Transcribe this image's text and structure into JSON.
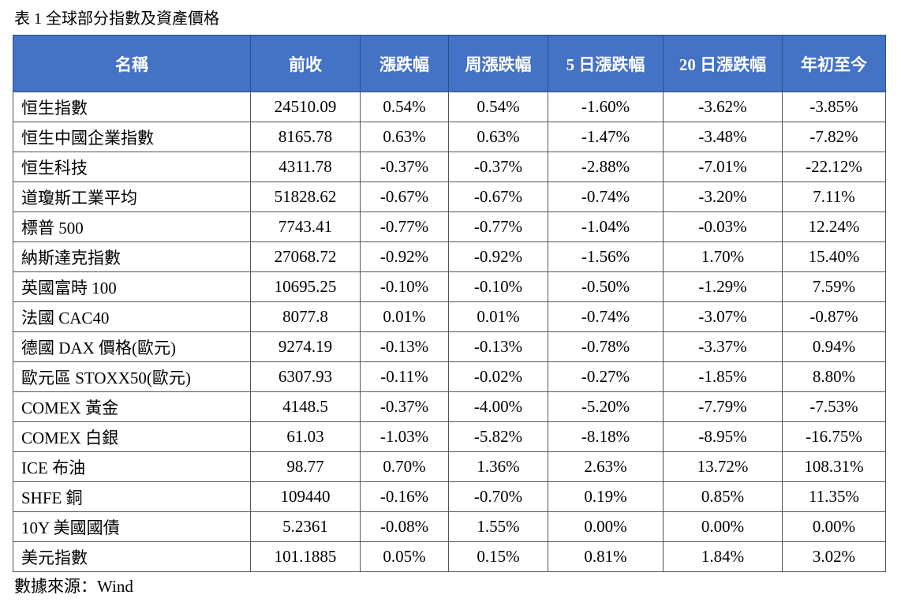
{
  "caption": "表 1 全球部分指數及資產價格",
  "source": "數據來源：Wind",
  "colors": {
    "header_bg": "#4472c4",
    "header_text": "#ffffff"
  },
  "table": {
    "headers": [
      "名稱",
      "前收",
      "漲跌幅",
      "周漲跌幅",
      "5 日漲跌幅",
      "20 日漲跌幅",
      "年初至今"
    ],
    "rows": [
      [
        "恒生指數",
        "24510.09",
        "0.54%",
        "0.54%",
        "-1.60%",
        "-3.62%",
        "-3.85%"
      ],
      [
        "恒生中國企業指數",
        "8165.78",
        "0.63%",
        "0.63%",
        "-1.47%",
        "-3.48%",
        "-7.82%"
      ],
      [
        "恒生科技",
        "4311.78",
        "-0.37%",
        "-0.37%",
        "-2.88%",
        "-7.01%",
        "-22.12%"
      ],
      [
        "道瓊斯工業平均",
        "51828.62",
        "-0.67%",
        "-0.67%",
        "-0.74%",
        "-3.20%",
        "7.11%"
      ],
      [
        "標普 500",
        "7743.41",
        "-0.77%",
        "-0.77%",
        "-1.04%",
        "-0.03%",
        "12.24%"
      ],
      [
        "納斯達克指數",
        "27068.72",
        "-0.92%",
        "-0.92%",
        "-1.56%",
        "1.70%",
        "15.40%"
      ],
      [
        "英國富時 100",
        "10695.25",
        "-0.10%",
        "-0.10%",
        "-0.50%",
        "-1.29%",
        "7.59%"
      ],
      [
        "法國 CAC40",
        "8077.8",
        "0.01%",
        "0.01%",
        "-0.74%",
        "-3.07%",
        "-0.87%"
      ],
      [
        "德國 DAX 價格(歐元)",
        "9274.19",
        "-0.13%",
        "-0.13%",
        "-0.78%",
        "-3.37%",
        "0.94%"
      ],
      [
        "歐元區 STOXX50(歐元)",
        "6307.93",
        "-0.11%",
        "-0.02%",
        "-0.27%",
        "-1.85%",
        "8.80%"
      ],
      [
        "COMEX 黃金",
        "4148.5",
        "-0.37%",
        "-4.00%",
        "-5.20%",
        "-7.79%",
        "-7.53%"
      ],
      [
        "COMEX 白銀",
        "61.03",
        "-1.03%",
        "-5.82%",
        "-8.18%",
        "-8.95%",
        "-16.75%"
      ],
      [
        "ICE 布油",
        "98.77",
        "0.70%",
        "1.36%",
        "2.63%",
        "13.72%",
        "108.31%"
      ],
      [
        "SHFE 銅",
        "109440",
        "-0.16%",
        "-0.70%",
        "0.19%",
        "0.85%",
        "11.35%"
      ],
      [
        "10Y  美國國債",
        "5.2361",
        "-0.08%",
        "1.55%",
        "0.00%",
        "0.00%",
        "0.00%"
      ],
      [
        "美元指數",
        "101.1885",
        "0.05%",
        "0.15%",
        "0.81%",
        "1.84%",
        "3.02%"
      ]
    ]
  }
}
